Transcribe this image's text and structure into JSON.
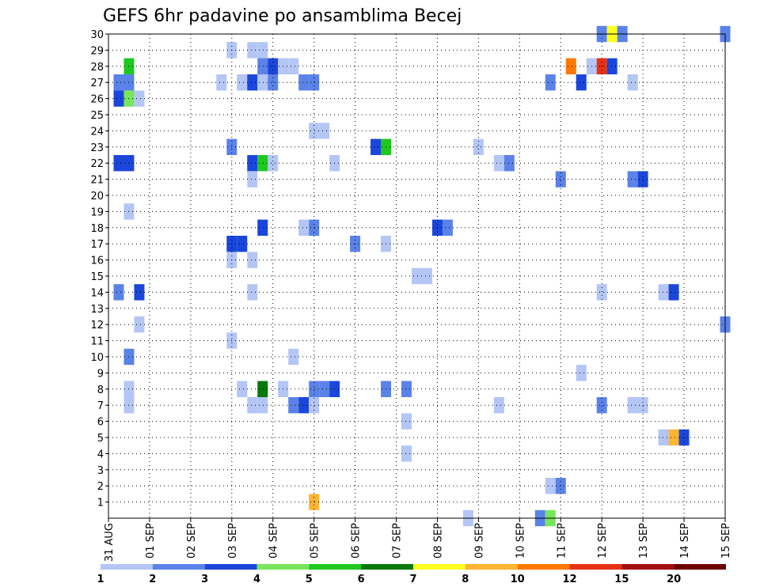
{
  "chart_data": {
    "type": "heatmap",
    "title": "GEFS 6hr padavine po ansamblima Becej",
    "xlabel": "",
    "ylabel": "",
    "x_range": [
      0,
      15
    ],
    "y_range": [
      0,
      30
    ],
    "x_tick_labels": [
      "31 AUG",
      "01 SEP",
      "02 SEP",
      "03 SEP",
      "04 SEP",
      "05 SEP",
      "06 SEP",
      "07 SEP",
      "08 SEP",
      "09 SEP",
      "10 SEP",
      "11 SEP",
      "12 SEP",
      "13 SEP",
      "14 SEP",
      "15 SEP"
    ],
    "y_tick_labels": [
      "1",
      "2",
      "3",
      "4",
      "5",
      "6",
      "7",
      "8",
      "9",
      "10",
      "11",
      "12",
      "13",
      "14",
      "15",
      "16",
      "17",
      "18",
      "19",
      "20",
      "21",
      "22",
      "23",
      "24",
      "25",
      "26",
      "27",
      "28",
      "29",
      "30"
    ],
    "grid": true,
    "colorbar": {
      "placement": "bottom",
      "labels": [
        "1",
        "2",
        "3",
        "4",
        "5",
        "6",
        "7",
        "8",
        "10",
        "12",
        "15",
        "20"
      ],
      "colors": [
        "#b4c6f5",
        "#5a82e8",
        "#1a46dc",
        "#78e65a",
        "#1ec81e",
        "#0a780a",
        "#ffff1e",
        "#ffb432",
        "#ff7800",
        "#e63214",
        "#a50f0f",
        "#6e0000"
      ]
    },
    "cells": [
      {
        "member": 30,
        "t": 12.0,
        "level": 2
      },
      {
        "member": 30,
        "t": 12.25,
        "level": 7
      },
      {
        "member": 30,
        "t": 12.5,
        "level": 2
      },
      {
        "member": 30,
        "t": 15.0,
        "level": 2
      },
      {
        "member": 29,
        "t": 3.0,
        "level": 1
      },
      {
        "member": 29,
        "t": 3.5,
        "level": 1
      },
      {
        "member": 29,
        "t": 3.75,
        "level": 1
      },
      {
        "member": 28,
        "t": 0.5,
        "level": 5
      },
      {
        "member": 28,
        "t": 3.75,
        "level": 2
      },
      {
        "member": 28,
        "t": 4.0,
        "level": 3
      },
      {
        "member": 28,
        "t": 4.25,
        "level": 1
      },
      {
        "member": 28,
        "t": 4.5,
        "level": 1
      },
      {
        "member": 28,
        "t": 11.25,
        "level": 10
      },
      {
        "member": 28,
        "t": 11.75,
        "level": 1
      },
      {
        "member": 28,
        "t": 12.0,
        "level": 12
      },
      {
        "member": 28,
        "t": 12.25,
        "level": 3
      },
      {
        "member": 27,
        "t": 0.25,
        "level": 2
      },
      {
        "member": 27,
        "t": 0.5,
        "level": 2
      },
      {
        "member": 27,
        "t": 2.75,
        "level": 1
      },
      {
        "member": 27,
        "t": 3.25,
        "level": 1
      },
      {
        "member": 27,
        "t": 3.5,
        "level": 3
      },
      {
        "member": 27,
        "t": 3.75,
        "level": 9
      },
      {
        "member": 27,
        "t": 4.0,
        "level": 2
      },
      {
        "member": 27,
        "t": 4.75,
        "level": 2
      },
      {
        "member": 27,
        "t": 5.0,
        "level": 2
      },
      {
        "member": 27,
        "t": 10.75,
        "level": 2
      },
      {
        "member": 27,
        "t": 11.5,
        "level": 3
      },
      {
        "member": 27,
        "t": 12.75,
        "level": 1
      },
      {
        "member": 26,
        "t": 0.25,
        "level": 3
      },
      {
        "member": 26,
        "t": 0.5,
        "level": 4
      },
      {
        "member": 26,
        "t": 0.75,
        "level": 1
      },
      {
        "member": 24,
        "t": 5.0,
        "level": 1
      },
      {
        "member": 24,
        "t": 5.25,
        "level": 1
      },
      {
        "member": 23,
        "t": 3.0,
        "level": 2
      },
      {
        "member": 23,
        "t": 6.5,
        "level": 3
      },
      {
        "member": 23,
        "t": 6.75,
        "level": 5
      },
      {
        "member": 23,
        "t": 9.0,
        "level": 1
      },
      {
        "member": 22,
        "t": 0.25,
        "level": 3
      },
      {
        "member": 22,
        "t": 0.5,
        "level": 3
      },
      {
        "member": 22,
        "t": 3.5,
        "level": 3
      },
      {
        "member": 22,
        "t": 3.75,
        "level": 5
      },
      {
        "member": 22,
        "t": 4.0,
        "level": 1
      },
      {
        "member": 22,
        "t": 5.5,
        "level": 1
      },
      {
        "member": 22,
        "t": 9.5,
        "level": 1
      },
      {
        "member": 22,
        "t": 9.75,
        "level": 2
      },
      {
        "member": 21,
        "t": 3.5,
        "level": 1
      },
      {
        "member": 21,
        "t": 11.0,
        "level": 2
      },
      {
        "member": 21,
        "t": 12.75,
        "level": 2
      },
      {
        "member": 21,
        "t": 13.0,
        "level": 3
      },
      {
        "member": 19,
        "t": 0.5,
        "level": 1
      },
      {
        "member": 18,
        "t": 3.75,
        "level": 3
      },
      {
        "member": 18,
        "t": 4.75,
        "level": 1
      },
      {
        "member": 18,
        "t": 5.0,
        "level": 2
      },
      {
        "member": 18,
        "t": 8.0,
        "level": 3
      },
      {
        "member": 18,
        "t": 8.25,
        "level": 2
      },
      {
        "member": 17,
        "t": 3.0,
        "level": 3
      },
      {
        "member": 17,
        "t": 3.25,
        "level": 3
      },
      {
        "member": 17,
        "t": 6.0,
        "level": 2
      },
      {
        "member": 17,
        "t": 6.75,
        "level": 1
      },
      {
        "member": 16,
        "t": 3.0,
        "level": 1
      },
      {
        "member": 16,
        "t": 3.5,
        "level": 1
      },
      {
        "member": 15,
        "t": 7.5,
        "level": 1
      },
      {
        "member": 15,
        "t": 7.75,
        "level": 1
      },
      {
        "member": 14,
        "t": 0.25,
        "level": 2
      },
      {
        "member": 14,
        "t": 0.75,
        "level": 3
      },
      {
        "member": 14,
        "t": 3.5,
        "level": 1
      },
      {
        "member": 14,
        "t": 12.0,
        "level": 1
      },
      {
        "member": 14,
        "t": 13.5,
        "level": 1
      },
      {
        "member": 14,
        "t": 13.75,
        "level": 3
      },
      {
        "member": 12,
        "t": 0.75,
        "level": 1
      },
      {
        "member": 12,
        "t": 15.0,
        "level": 2
      },
      {
        "member": 11,
        "t": 3.0,
        "level": 1
      },
      {
        "member": 10,
        "t": 0.5,
        "level": 2
      },
      {
        "member": 10,
        "t": 4.5,
        "level": 1
      },
      {
        "member": 9,
        "t": 11.5,
        "level": 1
      },
      {
        "member": 8,
        "t": 0.5,
        "level": 1
      },
      {
        "member": 8,
        "t": 3.25,
        "level": 1
      },
      {
        "member": 8,
        "t": 3.75,
        "level": 6
      },
      {
        "member": 8,
        "t": 4.25,
        "level": 1
      },
      {
        "member": 8,
        "t": 5.0,
        "level": 2
      },
      {
        "member": 8,
        "t": 5.25,
        "level": 2
      },
      {
        "member": 8,
        "t": 5.5,
        "level": 3
      },
      {
        "member": 8,
        "t": 6.75,
        "level": 2
      },
      {
        "member": 8,
        "t": 7.25,
        "level": 2
      },
      {
        "member": 7,
        "t": 0.5,
        "level": 1
      },
      {
        "member": 7,
        "t": 3.5,
        "level": 1
      },
      {
        "member": 7,
        "t": 3.75,
        "level": 1
      },
      {
        "member": 7,
        "t": 4.5,
        "level": 2
      },
      {
        "member": 7,
        "t": 4.75,
        "level": 3
      },
      {
        "member": 7,
        "t": 5.0,
        "level": 1
      },
      {
        "member": 7,
        "t": 9.5,
        "level": 1
      },
      {
        "member": 7,
        "t": 12.0,
        "level": 2
      },
      {
        "member": 7,
        "t": 12.75,
        "level": 1
      },
      {
        "member": 7,
        "t": 13.0,
        "level": 1
      },
      {
        "member": 6,
        "t": 7.25,
        "level": 1
      },
      {
        "member": 5,
        "t": 13.5,
        "level": 1
      },
      {
        "member": 5,
        "t": 13.75,
        "level": 8
      },
      {
        "member": 5,
        "t": 14.0,
        "level": 3
      },
      {
        "member": 4,
        "t": 7.25,
        "level": 1
      },
      {
        "member": 2,
        "t": 10.75,
        "level": 1
      },
      {
        "member": 2,
        "t": 11.0,
        "level": 2
      },
      {
        "member": 1,
        "t": 5.0,
        "level": 8
      },
      {
        "member": 0,
        "t": 8.75,
        "level": 1
      },
      {
        "member": 0,
        "t": 10.5,
        "level": 2
      },
      {
        "member": 0,
        "t": 10.75,
        "level": 4
      }
    ]
  }
}
